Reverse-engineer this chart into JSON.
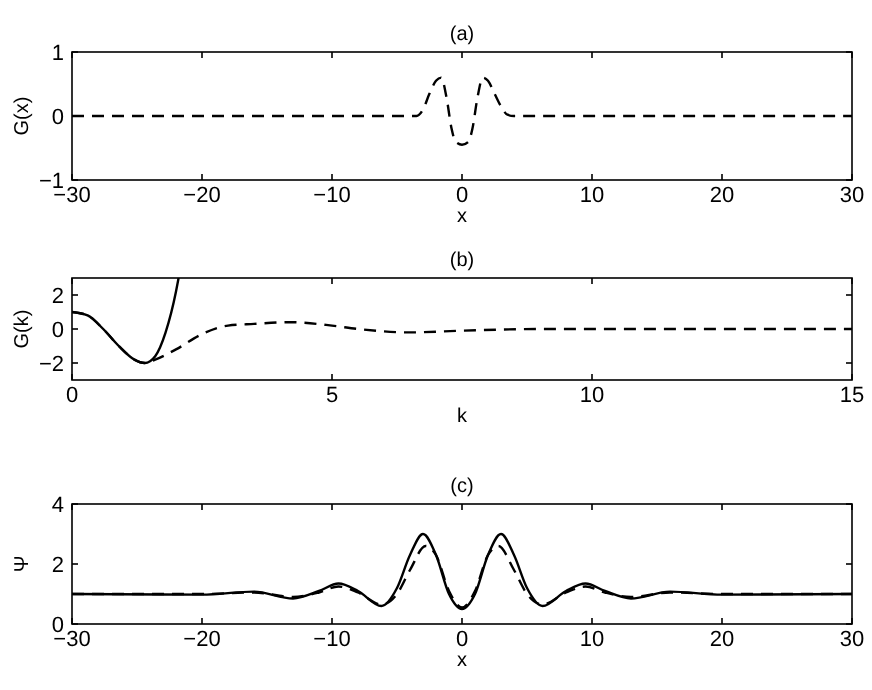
{
  "chart_data": [
    {
      "type": "line",
      "title": "(a)",
      "xlabel": "x",
      "ylabel": "G(x)",
      "xlim": [
        -30,
        30
      ],
      "xticks": [
        -30,
        -20,
        -10,
        0,
        10,
        20,
        30
      ],
      "ylim": [
        -1,
        1
      ],
      "yticks": [
        -1,
        0,
        1
      ],
      "grid": false,
      "marker": "none",
      "series": [
        {
          "color": "#000000",
          "line_style": "dashed",
          "x": [
            -30,
            -10,
            -3.5,
            -3,
            -2.5,
            -2,
            -1.6,
            -1.2,
            -0.8,
            -0.5,
            0,
            0.5,
            0.8,
            1.2,
            1.6,
            2,
            2.5,
            3,
            3.5,
            4,
            10,
            30
          ],
          "values": [
            0,
            0,
            0,
            0.1,
            0.35,
            0.55,
            0.6,
            0.3,
            -0.2,
            -0.4,
            -0.45,
            -0.4,
            -0.2,
            0.3,
            0.6,
            0.55,
            0.35,
            0.15,
            0.02,
            0,
            0,
            0
          ]
        }
      ]
    },
    {
      "type": "line",
      "title": "(b)",
      "xlabel": "k",
      "ylabel": "G(k)",
      "xlim": [
        0,
        15
      ],
      "xticks": [
        0,
        5,
        10,
        15
      ],
      "ylim": [
        -3,
        3
      ],
      "yticks": [
        -2,
        0,
        2
      ],
      "grid": false,
      "marker": "none",
      "series": [
        {
          "color": "#000000",
          "line_style": "dashed",
          "x": [
            0,
            0.3,
            0.6,
            0.9,
            1.2,
            1.4,
            1.6,
            2,
            2.5,
            3,
            3.5,
            4.2,
            5,
            5.5,
            6.5,
            7.5,
            9,
            15
          ],
          "values": [
            1,
            0.8,
            0,
            -1,
            -1.8,
            -2,
            -1.8,
            -1.2,
            -0.3,
            0.2,
            0.3,
            0.4,
            0.2,
            0,
            -0.2,
            -0.1,
            0,
            0
          ]
        },
        {
          "color": "#000000",
          "line_style": "solid",
          "x": [
            0,
            0.3,
            0.6,
            0.9,
            1.2,
            1.4,
            1.6,
            1.8,
            2,
            2.05
          ],
          "values": [
            1,
            0.8,
            0,
            -1,
            -1.8,
            -2,
            -1.6,
            -0.2,
            2.2,
            3
          ]
        }
      ]
    },
    {
      "type": "line",
      "title": "(c)",
      "xlabel": "x",
      "ylabel": "Ψ",
      "xlim": [
        -30,
        30
      ],
      "xticks": [
        -30,
        -20,
        -10,
        0,
        10,
        20,
        30
      ],
      "ylim": [
        0,
        4
      ],
      "yticks": [
        0,
        2,
        4
      ],
      "grid": false,
      "marker": "none",
      "series": [
        {
          "color": "#000000",
          "line_style": "solid",
          "x": [
            -30,
            -20,
            -16,
            -13,
            -11,
            -9.5,
            -8,
            -6.2,
            -5,
            -4,
            -3,
            -2,
            -1,
            0,
            1,
            2,
            3,
            4,
            5,
            6.2,
            8,
            9.5,
            11,
            13,
            16,
            20,
            30
          ],
          "values": [
            1,
            0.98,
            1.08,
            0.85,
            1.1,
            1.35,
            1.1,
            0.6,
            1.2,
            2.3,
            3,
            2.3,
            1,
            0.5,
            1,
            2.3,
            3,
            2.3,
            1.2,
            0.6,
            1.1,
            1.35,
            1.1,
            0.85,
            1.08,
            0.98,
            1
          ]
        },
        {
          "color": "#000000",
          "line_style": "dashed",
          "x": [
            -30,
            -20,
            -16,
            -13,
            -11,
            -9.5,
            -8,
            -6.2,
            -5,
            -4,
            -2.8,
            -2,
            -1,
            0,
            1,
            2,
            2.8,
            4,
            5,
            6.2,
            8,
            9.5,
            11,
            13,
            16,
            20,
            30
          ],
          "values": [
            1,
            1,
            1.05,
            0.9,
            1.05,
            1.25,
            1.05,
            0.65,
            1,
            1.8,
            2.6,
            2.3,
            1.1,
            0.55,
            1.1,
            2.3,
            2.6,
            1.8,
            1,
            0.65,
            1.05,
            1.25,
            1.05,
            0.9,
            1.05,
            1,
            1
          ]
        }
      ]
    }
  ]
}
